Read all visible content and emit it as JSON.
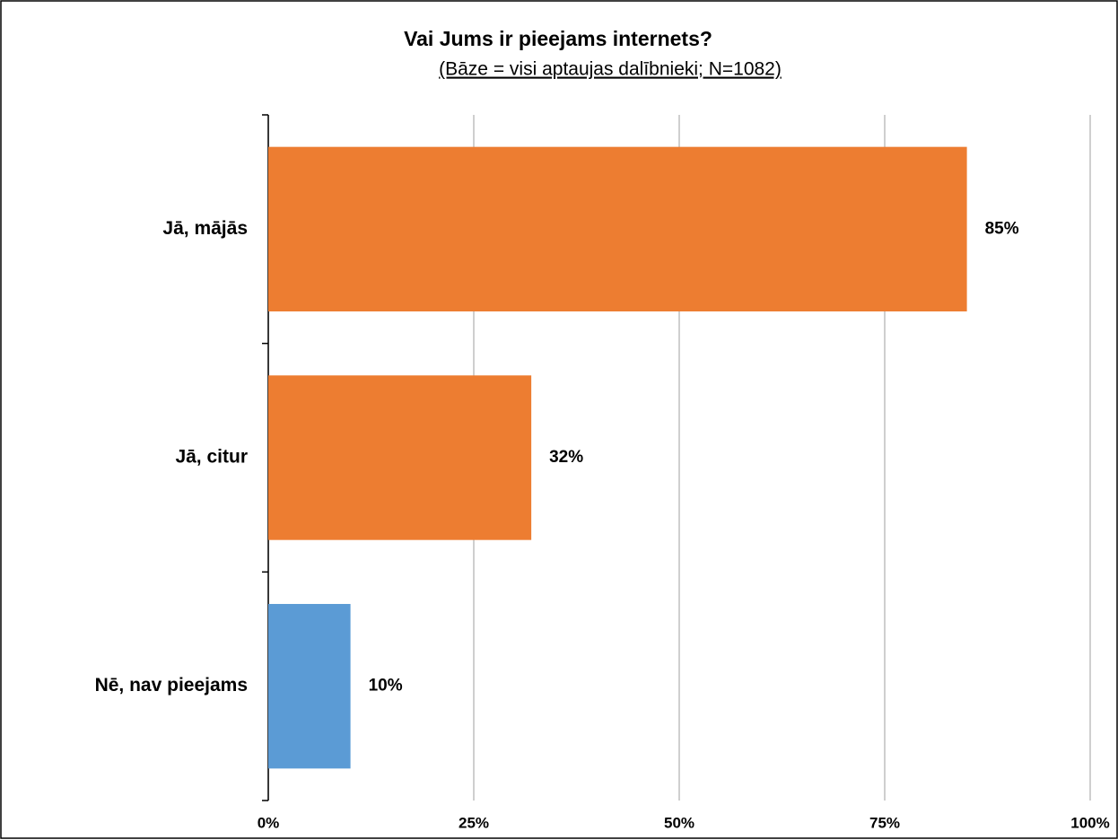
{
  "chart_data": {
    "type": "hbar",
    "title": "Vai Jums ir pieejams internets?",
    "subtitle": "(Bāze = visi aptaujas dalībnieki; N=1082)",
    "categories": [
      "Jā, mājās",
      "Jā, citur",
      "Nē, nav pieejams"
    ],
    "values": [
      85,
      32,
      10
    ],
    "value_labels": [
      "85%",
      "32%",
      "10%"
    ],
    "colors": [
      "#ed7d31",
      "#ed7d31",
      "#5b9bd5"
    ],
    "xlim": [
      0,
      100
    ],
    "xticks": [
      {
        "value": 0,
        "label": "0%"
      },
      {
        "value": 25,
        "label": "25%"
      },
      {
        "value": 50,
        "label": "50%"
      },
      {
        "value": 75,
        "label": "75%"
      },
      {
        "value": 100,
        "label": "100%"
      }
    ],
    "grid": true
  }
}
